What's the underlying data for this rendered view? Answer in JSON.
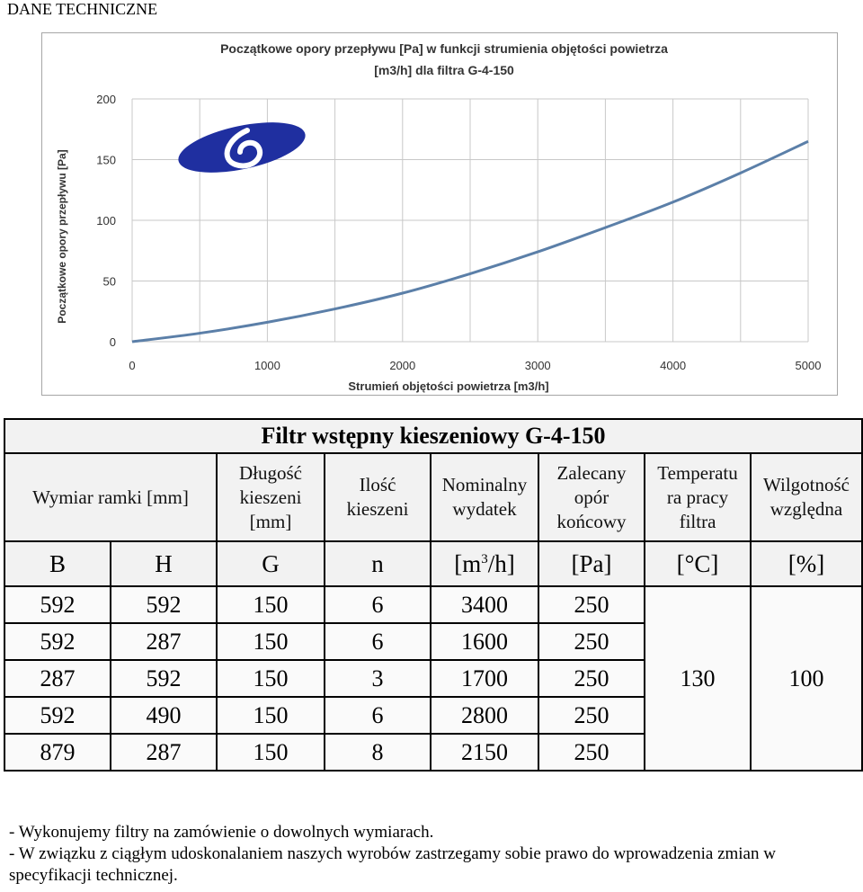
{
  "heading": "DANE TECHNICZNE",
  "chart_data": {
    "type": "line",
    "title": "Początkowe opory przepływu [Pa] w funkcji strumienia objętości powietrza [m3/h] dla filtra G-4-150",
    "title_line1": "Początkowe opory przepływu [Pa] w funkcji strumienia objętości powietrza",
    "title_line2": "[m3/h] dla filtra G-4-150",
    "xlabel": "Strumień objętości powietrza [m3/h]",
    "ylabel": "Początkowe opory przepływu [Pa]",
    "xlim": [
      0,
      5000
    ],
    "ylim": [
      0,
      200
    ],
    "x_ticks": [
      0,
      1000,
      2000,
      3000,
      4000,
      5000
    ],
    "y_ticks": [
      0,
      50,
      100,
      150,
      200
    ],
    "x_tick_labels": [
      "0",
      "1000",
      "2000",
      "3000",
      "4000",
      "5000"
    ],
    "y_tick_labels": [
      "0",
      "50",
      "100",
      "150",
      "200"
    ],
    "x_minor_step": 500,
    "grid": true,
    "series": [
      {
        "x": [
          0,
          500,
          1000,
          1500,
          2000,
          2500,
          3000,
          3500,
          4000,
          4500,
          5000
        ],
        "y": [
          0,
          7,
          16,
          27,
          40,
          56,
          74,
          94,
          115,
          139,
          165
        ],
        "color": "#5b7fa8"
      }
    ],
    "logo_color": "#1f2fa0"
  },
  "table": {
    "title": "Filtr wstępny kieszeniowy G-4-150",
    "headers": {
      "frame": "Wymiar ramki [mm]",
      "depth": [
        "Długość",
        "kieszeni",
        "[mm]"
      ],
      "count": [
        "Ilość",
        "kieszeni"
      ],
      "flow": [
        "Nominalny",
        "wydatek"
      ],
      "resistance": [
        "Zalecany",
        "opór",
        "końcowy"
      ],
      "temperature": [
        "Temperatu",
        "ra pracy",
        "filtra"
      ],
      "humidity": [
        "Wilgotność",
        "względna"
      ]
    },
    "symbols": {
      "b": "B",
      "h": "H",
      "g": "G",
      "n": "n",
      "flow_unit_pre": "[m",
      "flow_unit_sup": "3",
      "flow_unit_post": "/h]",
      "pa": "[Pa]",
      "temp": "[°C]",
      "pct": "[%]"
    },
    "rows": [
      {
        "b": "592",
        "h": "592",
        "g": "150",
        "n": "6",
        "flow": "3400",
        "pa": "250"
      },
      {
        "b": "592",
        "h": "287",
        "g": "150",
        "n": "6",
        "flow": "1600",
        "pa": "250"
      },
      {
        "b": "287",
        "h": "592",
        "g": "150",
        "n": "3",
        "flow": "1700",
        "pa": "250"
      },
      {
        "b": "592",
        "h": "490",
        "g": "150",
        "n": "6",
        "flow": "2800",
        "pa": "250"
      },
      {
        "b": "879",
        "h": "287",
        "g": "150",
        "n": "8",
        "flow": "2150",
        "pa": "250"
      }
    ],
    "temperature_value": "130",
    "humidity_value": "100"
  },
  "notes": [
    "- Wykonujemy filtry na zamówienie o dowolnych  wymiarach.",
    "- W związku z ciągłym udoskonalaniem naszych wyrobów zastrzegamy sobie prawo do wprowadzenia zmian w specyfikacji technicznej."
  ]
}
